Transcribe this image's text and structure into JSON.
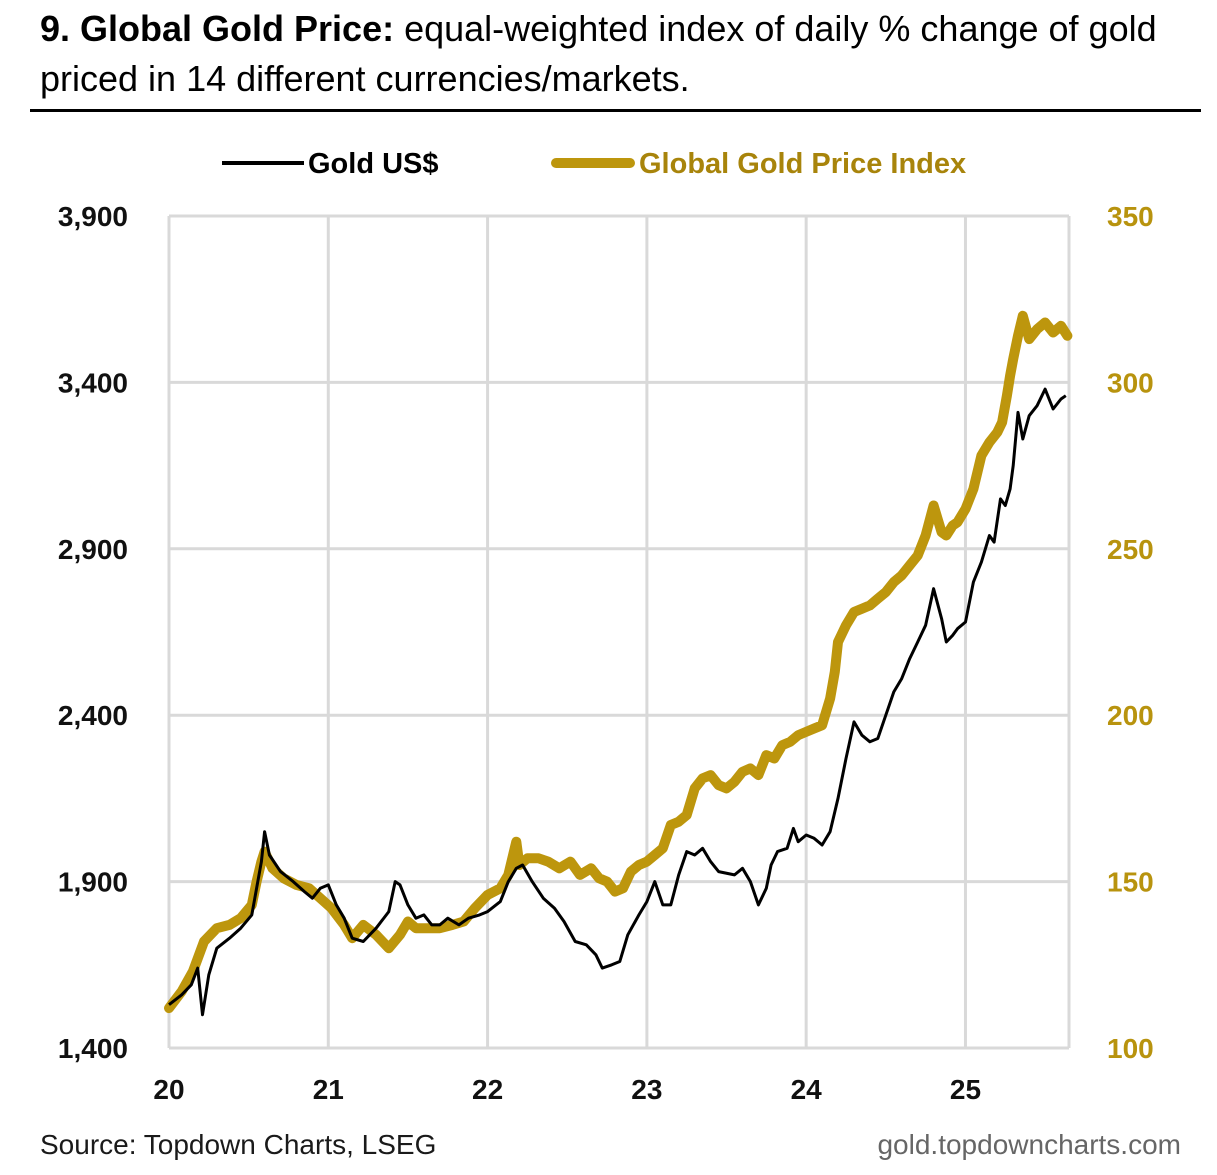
{
  "header": {
    "title_bold": "9. Global Gold Price:",
    "title_rest": "equal-weighted index of daily % change of gold priced in 14 different currencies/markets."
  },
  "footer": {
    "source": "Source: Topdown Charts, LSEG",
    "site": "gold.topdowncharts.com"
  },
  "colors": {
    "gold_usd": "#000000",
    "index": "#bd960d",
    "grid": "#d9d9d9",
    "right_axis": "#b8930e"
  },
  "chart_data": {
    "type": "line",
    "title": "9. Global Gold Price: equal-weighted index of daily % change of gold priced in 14 different currencies/markets.",
    "legend_position": "top",
    "x_label": "",
    "x_range": [
      2020.0,
      2025.65
    ],
    "x_ticks": [
      2020,
      2021,
      2022,
      2023,
      2024,
      2025
    ],
    "x_tick_labels": [
      "20",
      "21",
      "22",
      "23",
      "24",
      "25"
    ],
    "y_left": {
      "range": [
        1400,
        3900
      ],
      "ticks": [
        1400,
        1900,
        2400,
        2900,
        3400,
        3900
      ],
      "tick_labels": [
        "1,400",
        "1,900",
        "2,400",
        "2,900",
        "3,400",
        "3,900"
      ]
    },
    "y_right": {
      "range": [
        100,
        350
      ],
      "ticks": [
        100,
        150,
        200,
        250,
        300,
        350
      ],
      "tick_labels": [
        "100",
        "150",
        "200",
        "250",
        "300",
        "350"
      ]
    },
    "grid": true,
    "series": [
      {
        "name": "Gold US$",
        "axis": "left",
        "x": [
          2020.0,
          2020.08,
          2020.14,
          2020.18,
          2020.21,
          2020.25,
          2020.3,
          2020.38,
          2020.45,
          2020.52,
          2020.58,
          2020.6,
          2020.63,
          2020.7,
          2020.78,
          2020.85,
          2020.9,
          2020.95,
          2021.0,
          2021.05,
          2021.1,
          2021.15,
          2021.22,
          2021.3,
          2021.38,
          2021.42,
          2021.45,
          2021.5,
          2021.55,
          2021.6,
          2021.65,
          2021.7,
          2021.75,
          2021.82,
          2021.88,
          2021.95,
          2022.0,
          2022.08,
          2022.13,
          2022.18,
          2022.22,
          2022.28,
          2022.35,
          2022.42,
          2022.48,
          2022.55,
          2022.62,
          2022.68,
          2022.72,
          2022.78,
          2022.83,
          2022.88,
          2022.95,
          2023.0,
          2023.05,
          2023.1,
          2023.15,
          2023.2,
          2023.25,
          2023.3,
          2023.35,
          2023.4,
          2023.45,
          2023.55,
          2023.6,
          2023.65,
          2023.7,
          2023.75,
          2023.78,
          2023.82,
          2023.88,
          2023.92,
          2023.95,
          2024.0,
          2024.05,
          2024.1,
          2024.15,
          2024.2,
          2024.25,
          2024.3,
          2024.35,
          2024.4,
          2024.45,
          2024.5,
          2024.55,
          2024.6,
          2024.65,
          2024.7,
          2024.75,
          2024.8,
          2024.85,
          2024.88,
          2024.92,
          2024.95,
          2025.0,
          2025.05,
          2025.1,
          2025.15,
          2025.18,
          2025.22,
          2025.25,
          2025.28,
          2025.3,
          2025.33,
          2025.36,
          2025.4,
          2025.45,
          2025.5,
          2025.55,
          2025.6,
          2025.63
        ],
        "y": [
          1530,
          1560,
          1590,
          1640,
          1500,
          1620,
          1700,
          1730,
          1760,
          1800,
          1960,
          2050,
          1980,
          1930,
          1900,
          1870,
          1850,
          1880,
          1890,
          1830,
          1790,
          1730,
          1720,
          1760,
          1810,
          1900,
          1890,
          1830,
          1790,
          1800,
          1770,
          1770,
          1790,
          1770,
          1790,
          1800,
          1810,
          1840,
          1900,
          1940,
          1950,
          1900,
          1850,
          1820,
          1780,
          1720,
          1710,
          1680,
          1640,
          1650,
          1660,
          1740,
          1800,
          1840,
          1900,
          1830,
          1830,
          1920,
          1990,
          1980,
          2000,
          1960,
          1930,
          1920,
          1940,
          1900,
          1830,
          1880,
          1950,
          1990,
          2000,
          2060,
          2020,
          2040,
          2030,
          2010,
          2050,
          2150,
          2270,
          2380,
          2340,
          2320,
          2330,
          2400,
          2470,
          2510,
          2570,
          2620,
          2670,
          2780,
          2690,
          2620,
          2640,
          2660,
          2680,
          2800,
          2860,
          2940,
          2920,
          3050,
          3030,
          3080,
          3150,
          3310,
          3230,
          3300,
          3330,
          3380,
          3320,
          3350,
          3360
        ]
      },
      {
        "name": "Global Gold Price Index",
        "axis": "right",
        "x": [
          2020.0,
          2020.08,
          2020.15,
          2020.22,
          2020.3,
          2020.38,
          2020.45,
          2020.52,
          2020.55,
          2020.58,
          2020.6,
          2020.65,
          2020.72,
          2020.8,
          2020.88,
          2020.95,
          2021.02,
          2021.1,
          2021.15,
          2021.22,
          2021.3,
          2021.38,
          2021.45,
          2021.5,
          2021.55,
          2021.62,
          2021.7,
          2021.78,
          2021.85,
          2021.92,
          2022.0,
          2022.08,
          2022.13,
          2022.18,
          2022.2,
          2022.25,
          2022.32,
          2022.38,
          2022.45,
          2022.52,
          2022.58,
          2022.65,
          2022.7,
          2022.75,
          2022.8,
          2022.85,
          2022.9,
          2022.95,
          2023.0,
          2023.05,
          2023.1,
          2023.15,
          2023.2,
          2023.25,
          2023.3,
          2023.35,
          2023.4,
          2023.45,
          2023.5,
          2023.55,
          2023.6,
          2023.65,
          2023.7,
          2023.75,
          2023.8,
          2023.85,
          2023.9,
          2023.95,
          2024.0,
          2024.05,
          2024.1,
          2024.15,
          2024.18,
          2024.2,
          2024.25,
          2024.3,
          2024.35,
          2024.4,
          2024.45,
          2024.5,
          2024.55,
          2024.6,
          2024.65,
          2024.7,
          2024.75,
          2024.8,
          2024.85,
          2024.88,
          2024.92,
          2024.95,
          2025.0,
          2025.05,
          2025.1,
          2025.15,
          2025.2,
          2025.23,
          2025.26,
          2025.28,
          2025.3,
          2025.33,
          2025.36,
          2025.4,
          2025.45,
          2025.5,
          2025.55,
          2025.6,
          2025.64
        ],
        "y": [
          112,
          117,
          123,
          132,
          136,
          137,
          139,
          143,
          150,
          156,
          159,
          154,
          151,
          149,
          148,
          145,
          142,
          137,
          133,
          137,
          134,
          130,
          134,
          138,
          136,
          136,
          136,
          137,
          138,
          142,
          146,
          148,
          152,
          162,
          155,
          157,
          157,
          156,
          154,
          156,
          152,
          154,
          151,
          150,
          147,
          148,
          153,
          155,
          156,
          158,
          160,
          167,
          168,
          170,
          178,
          181,
          182,
          179,
          178,
          180,
          183,
          184,
          182,
          188,
          187,
          191,
          192,
          194,
          195,
          196,
          197,
          205,
          213,
          222,
          227,
          231,
          232,
          233,
          235,
          237,
          240,
          242,
          245,
          248,
          254,
          263,
          255,
          254,
          257,
          258,
          262,
          268,
          278,
          282,
          285,
          288,
          296,
          302,
          307,
          314,
          320,
          313,
          316,
          318,
          315,
          317,
          314
        ]
      }
    ]
  }
}
